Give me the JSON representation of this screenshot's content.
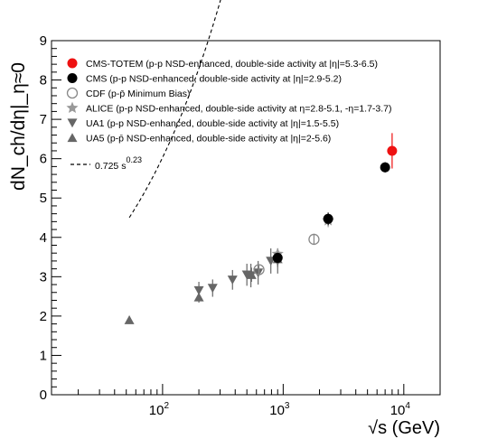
{
  "chart_data": {
    "type": "scatter",
    "xscale": "log",
    "xlim": [
      12,
      20000
    ],
    "ylim": [
      0,
      9
    ],
    "ylabel": "dN_ch/dη|_η≈0",
    "xlabel": "√s (GeV)",
    "x_tick_labels": [
      {
        "x": 100,
        "base": "10",
        "exp": "2"
      },
      {
        "x": 1000,
        "base": "10",
        "exp": "3"
      },
      {
        "x": 10000,
        "base": "10",
        "exp": "4"
      }
    ],
    "y_ticks": [
      0,
      1,
      2,
      3,
      4,
      5,
      6,
      7,
      8,
      9
    ],
    "y_tick_labels": [
      "0",
      "1",
      "2",
      "3",
      "4",
      "5",
      "6",
      "7",
      "8",
      "9"
    ],
    "legend_position": "top-left",
    "series": [
      {
        "name": "CMS-TOTEM (p-p NSD-enhanced, double-side activity at |η|=5.3-6.5)",
        "marker": "circle",
        "color": "#ee1111",
        "points": [
          {
            "x": 8000,
            "y": 6.2,
            "err": 0.45
          }
        ]
      },
      {
        "name": "CMS (p-p NSD-enhanced, double-side activity at |η|=2.9-5.2)",
        "marker": "circle",
        "color": "#000000",
        "points": [
          {
            "x": 900,
            "y": 3.48,
            "err": 0.13
          },
          {
            "x": 2360,
            "y": 4.47,
            "err": 0.16
          },
          {
            "x": 7000,
            "y": 5.78,
            "err": 0.13
          }
        ]
      },
      {
        "name": "CDF (p-p̄ Minimum Bias)",
        "marker": "open-circle",
        "color": "#888888",
        "points": [
          {
            "x": 630,
            "y": 3.18,
            "err": 0.12
          },
          {
            "x": 1800,
            "y": 3.95,
            "err": 0.14
          }
        ]
      },
      {
        "name": "ALICE (p-p NSD-enhanced, double-side activity at η=2.8-5.1, -η=1.7-3.7)",
        "marker": "star",
        "color": "#999999",
        "points": [
          {
            "x": 900,
            "y": 3.58,
            "err": 0.12
          },
          {
            "x": 2360,
            "y": 4.43,
            "err": 0.17
          }
        ]
      },
      {
        "name": "UA1 (p-p NSD-enhanced, double-side activity at |η|=1.5-5.5)",
        "marker": "triangle-down",
        "color": "#666666",
        "points": [
          {
            "x": 200,
            "y": 2.65,
            "err": 0.22
          },
          {
            "x": 260,
            "y": 2.71,
            "err": 0.22
          },
          {
            "x": 380,
            "y": 2.92,
            "err": 0.25
          },
          {
            "x": 500,
            "y": 3.05,
            "err": 0.28
          },
          {
            "x": 540,
            "y": 3.03,
            "err": 0.3
          },
          {
            "x": 620,
            "y": 3.1,
            "err": 0.3
          },
          {
            "x": 790,
            "y": 3.4,
            "err": 0.32
          },
          {
            "x": 900,
            "y": 3.4,
            "err": 0.32
          }
        ]
      },
      {
        "name": "UA5 (p-p̄ NSD-enhanced, double-side activity at |η|=2-5.6)",
        "marker": "triangle-up",
        "color": "#666666",
        "points": [
          {
            "x": 53,
            "y": 1.9,
            "err": 0.1
          },
          {
            "x": 200,
            "y": 2.48,
            "err": 0.14
          },
          {
            "x": 546,
            "y": 3.05,
            "err": 0.18
          },
          {
            "x": 900,
            "y": 3.45,
            "err": 0.2
          }
        ]
      }
    ],
    "fit": {
      "label_text": "0.725 s",
      "label_exp": "0.23",
      "coefficient": 0.725,
      "exponent": 0.23,
      "x_range": [
        53,
        7000
      ],
      "style": "dashed",
      "color": "#000000"
    }
  }
}
